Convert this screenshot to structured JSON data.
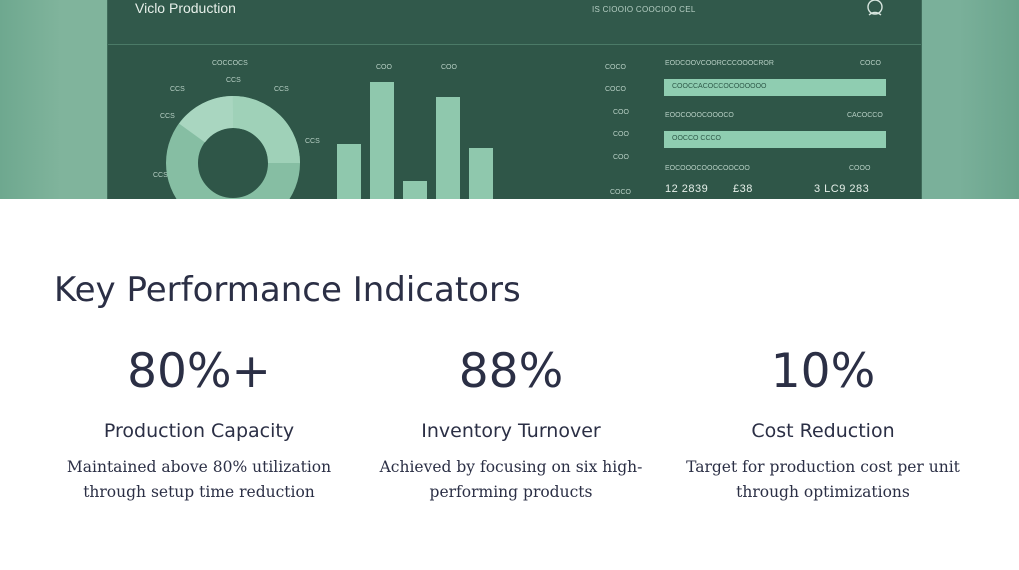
{
  "banner": {
    "dashboard_title": "Viclo Production",
    "dashboard_meta": "IS CIOOIO COOCIOO CEL",
    "donut_top_label": "COCCOCS",
    "donut_labels": [
      "CCS",
      "CCS",
      "CCS",
      "CCS",
      "CCS",
      "CCS"
    ],
    "bar_top_labels": [
      "COO",
      "COO"
    ],
    "axis_labels": [
      "COCO",
      "COCO",
      "COO",
      "COO",
      "COO",
      "COCO"
    ],
    "rows": [
      {
        "label": "EODCOOVCOORCCCOOOCROR",
        "value": "COCO",
        "bar_text": "COOCCACOCCOCOOOOOO",
        "fill": 1.0
      },
      {
        "label": "EOOCOOOCOOOCO",
        "value": "CACOCCO",
        "bar_text": "OOCCO CCCO",
        "fill": 1.0
      },
      {
        "label": "EOCOOOCOOOCOOCOO",
        "value": "COOO"
      }
    ],
    "bottom_numbers": [
      "12 2839",
      "£38",
      "3 LC9 283"
    ],
    "colors": {
      "dashboard_bg": "#2f5648",
      "accent": "#8fcdb1",
      "banner_bg": "#7ab09a"
    }
  },
  "section": {
    "title": "Key Performance Indicators"
  },
  "kpis": [
    {
      "value": "80%+",
      "label": "Production Capacity",
      "desc_line1": "Maintained above 80% utilization",
      "desc_line2": "through setup time reduction"
    },
    {
      "value": "88%",
      "label": "Inventory Turnover",
      "desc_line1": "Achieved by focusing on six high-",
      "desc_line2": "performing products"
    },
    {
      "value": "10%",
      "label": "Cost Reduction",
      "desc_line1": "Target for production cost per unit",
      "desc_line2": "through optimizations"
    }
  ]
}
